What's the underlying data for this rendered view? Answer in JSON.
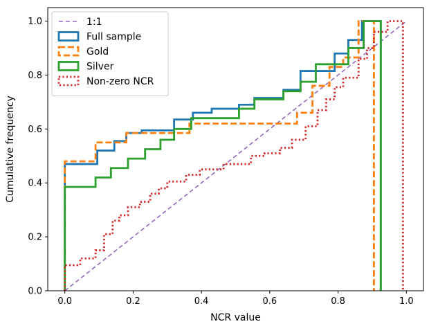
{
  "chart_data": {
    "type": "line",
    "xlabel": "NCR value",
    "ylabel": "Cumulative frequency",
    "xlim": [
      -0.05,
      1.05
    ],
    "ylim": [
      0.0,
      1.05
    ],
    "xticks": [
      "0.0",
      "0.2",
      "0.4",
      "0.6",
      "0.8",
      "1.0"
    ],
    "yticks": [
      "0.0",
      "0.2",
      "0.4",
      "0.6",
      "0.8",
      "1.0"
    ],
    "grid": false,
    "legend_position": "top-left",
    "series": [
      {
        "name": "1:1",
        "style": "dashed-thin",
        "color": "#9467bd",
        "points": [
          [
            0.0,
            0.0
          ],
          [
            1.0,
            1.0
          ]
        ]
      },
      {
        "name": "Full sample",
        "style": "solid-step",
        "color": "#1f77b4",
        "points": [
          [
            0.0,
            0.0
          ],
          [
            0.0,
            0.47
          ],
          [
            0.095,
            0.47
          ],
          [
            0.095,
            0.52
          ],
          [
            0.145,
            0.52
          ],
          [
            0.145,
            0.555
          ],
          [
            0.18,
            0.555
          ],
          [
            0.18,
            0.585
          ],
          [
            0.225,
            0.585
          ],
          [
            0.225,
            0.595
          ],
          [
            0.32,
            0.595
          ],
          [
            0.32,
            0.635
          ],
          [
            0.375,
            0.635
          ],
          [
            0.375,
            0.66
          ],
          [
            0.43,
            0.66
          ],
          [
            0.43,
            0.675
          ],
          [
            0.51,
            0.675
          ],
          [
            0.51,
            0.69
          ],
          [
            0.555,
            0.69
          ],
          [
            0.555,
            0.715
          ],
          [
            0.64,
            0.715
          ],
          [
            0.64,
            0.745
          ],
          [
            0.69,
            0.745
          ],
          [
            0.69,
            0.815
          ],
          [
            0.79,
            0.815
          ],
          [
            0.79,
            0.88
          ],
          [
            0.83,
            0.88
          ],
          [
            0.83,
            0.93
          ],
          [
            0.87,
            0.93
          ],
          [
            0.87,
            1.0
          ],
          [
            0.925,
            1.0
          ],
          [
            0.925,
            0.0
          ]
        ]
      },
      {
        "name": "Gold",
        "style": "dashed-step",
        "color": "#ff7f0e",
        "points": [
          [
            0.0,
            0.0
          ],
          [
            0.0,
            0.48
          ],
          [
            0.09,
            0.48
          ],
          [
            0.09,
            0.55
          ],
          [
            0.18,
            0.55
          ],
          [
            0.18,
            0.585
          ],
          [
            0.365,
            0.585
          ],
          [
            0.365,
            0.62
          ],
          [
            0.68,
            0.62
          ],
          [
            0.68,
            0.66
          ],
          [
            0.725,
            0.66
          ],
          [
            0.725,
            0.76
          ],
          [
            0.775,
            0.76
          ],
          [
            0.775,
            0.83
          ],
          [
            0.815,
            0.83
          ],
          [
            0.815,
            0.865
          ],
          [
            0.86,
            0.865
          ],
          [
            0.86,
            1.0
          ],
          [
            0.905,
            1.0
          ],
          [
            0.905,
            0.0
          ]
        ]
      },
      {
        "name": "Silver",
        "style": "solid-step",
        "color": "#2ca02c",
        "points": [
          [
            0.0,
            0.0
          ],
          [
            0.0,
            0.385
          ],
          [
            0.09,
            0.385
          ],
          [
            0.09,
            0.42
          ],
          [
            0.135,
            0.42
          ],
          [
            0.135,
            0.455
          ],
          [
            0.185,
            0.455
          ],
          [
            0.185,
            0.49
          ],
          [
            0.235,
            0.49
          ],
          [
            0.235,
            0.525
          ],
          [
            0.28,
            0.525
          ],
          [
            0.28,
            0.56
          ],
          [
            0.32,
            0.56
          ],
          [
            0.32,
            0.6
          ],
          [
            0.37,
            0.6
          ],
          [
            0.37,
            0.64
          ],
          [
            0.51,
            0.64
          ],
          [
            0.51,
            0.675
          ],
          [
            0.555,
            0.675
          ],
          [
            0.555,
            0.71
          ],
          [
            0.64,
            0.71
          ],
          [
            0.64,
            0.74
          ],
          [
            0.69,
            0.74
          ],
          [
            0.69,
            0.775
          ],
          [
            0.735,
            0.775
          ],
          [
            0.735,
            0.84
          ],
          [
            0.83,
            0.84
          ],
          [
            0.83,
            0.9
          ],
          [
            0.875,
            0.9
          ],
          [
            0.875,
            1.0
          ],
          [
            0.925,
            1.0
          ],
          [
            0.925,
            0.0
          ]
        ]
      },
      {
        "name": "Non-zero NCR",
        "style": "dotted-step",
        "color": "#d62728",
        "points": [
          [
            0.0,
            0.0
          ],
          [
            0.0,
            0.095
          ],
          [
            0.045,
            0.095
          ],
          [
            0.045,
            0.12
          ],
          [
            0.09,
            0.12
          ],
          [
            0.09,
            0.15
          ],
          [
            0.115,
            0.15
          ],
          [
            0.115,
            0.21
          ],
          [
            0.14,
            0.21
          ],
          [
            0.14,
            0.26
          ],
          [
            0.16,
            0.26
          ],
          [
            0.16,
            0.28
          ],
          [
            0.185,
            0.28
          ],
          [
            0.185,
            0.31
          ],
          [
            0.22,
            0.31
          ],
          [
            0.22,
            0.33
          ],
          [
            0.25,
            0.33
          ],
          [
            0.25,
            0.36
          ],
          [
            0.275,
            0.36
          ],
          [
            0.275,
            0.38
          ],
          [
            0.3,
            0.38
          ],
          [
            0.3,
            0.405
          ],
          [
            0.355,
            0.405
          ],
          [
            0.355,
            0.43
          ],
          [
            0.395,
            0.43
          ],
          [
            0.395,
            0.45
          ],
          [
            0.465,
            0.45
          ],
          [
            0.465,
            0.47
          ],
          [
            0.545,
            0.47
          ],
          [
            0.545,
            0.5
          ],
          [
            0.585,
            0.5
          ],
          [
            0.585,
            0.51
          ],
          [
            0.63,
            0.51
          ],
          [
            0.63,
            0.53
          ],
          [
            0.665,
            0.53
          ],
          [
            0.665,
            0.56
          ],
          [
            0.705,
            0.56
          ],
          [
            0.705,
            0.61
          ],
          [
            0.74,
            0.61
          ],
          [
            0.74,
            0.67
          ],
          [
            0.765,
            0.67
          ],
          [
            0.765,
            0.71
          ],
          [
            0.79,
            0.71
          ],
          [
            0.79,
            0.755
          ],
          [
            0.815,
            0.755
          ],
          [
            0.815,
            0.79
          ],
          [
            0.86,
            0.79
          ],
          [
            0.86,
            0.86
          ],
          [
            0.885,
            0.86
          ],
          [
            0.885,
            0.9
          ],
          [
            0.905,
            0.9
          ],
          [
            0.905,
            0.96
          ],
          [
            0.945,
            0.96
          ],
          [
            0.945,
            1.0
          ],
          [
            0.99,
            1.0
          ],
          [
            0.99,
            0.0
          ]
        ]
      }
    ]
  }
}
